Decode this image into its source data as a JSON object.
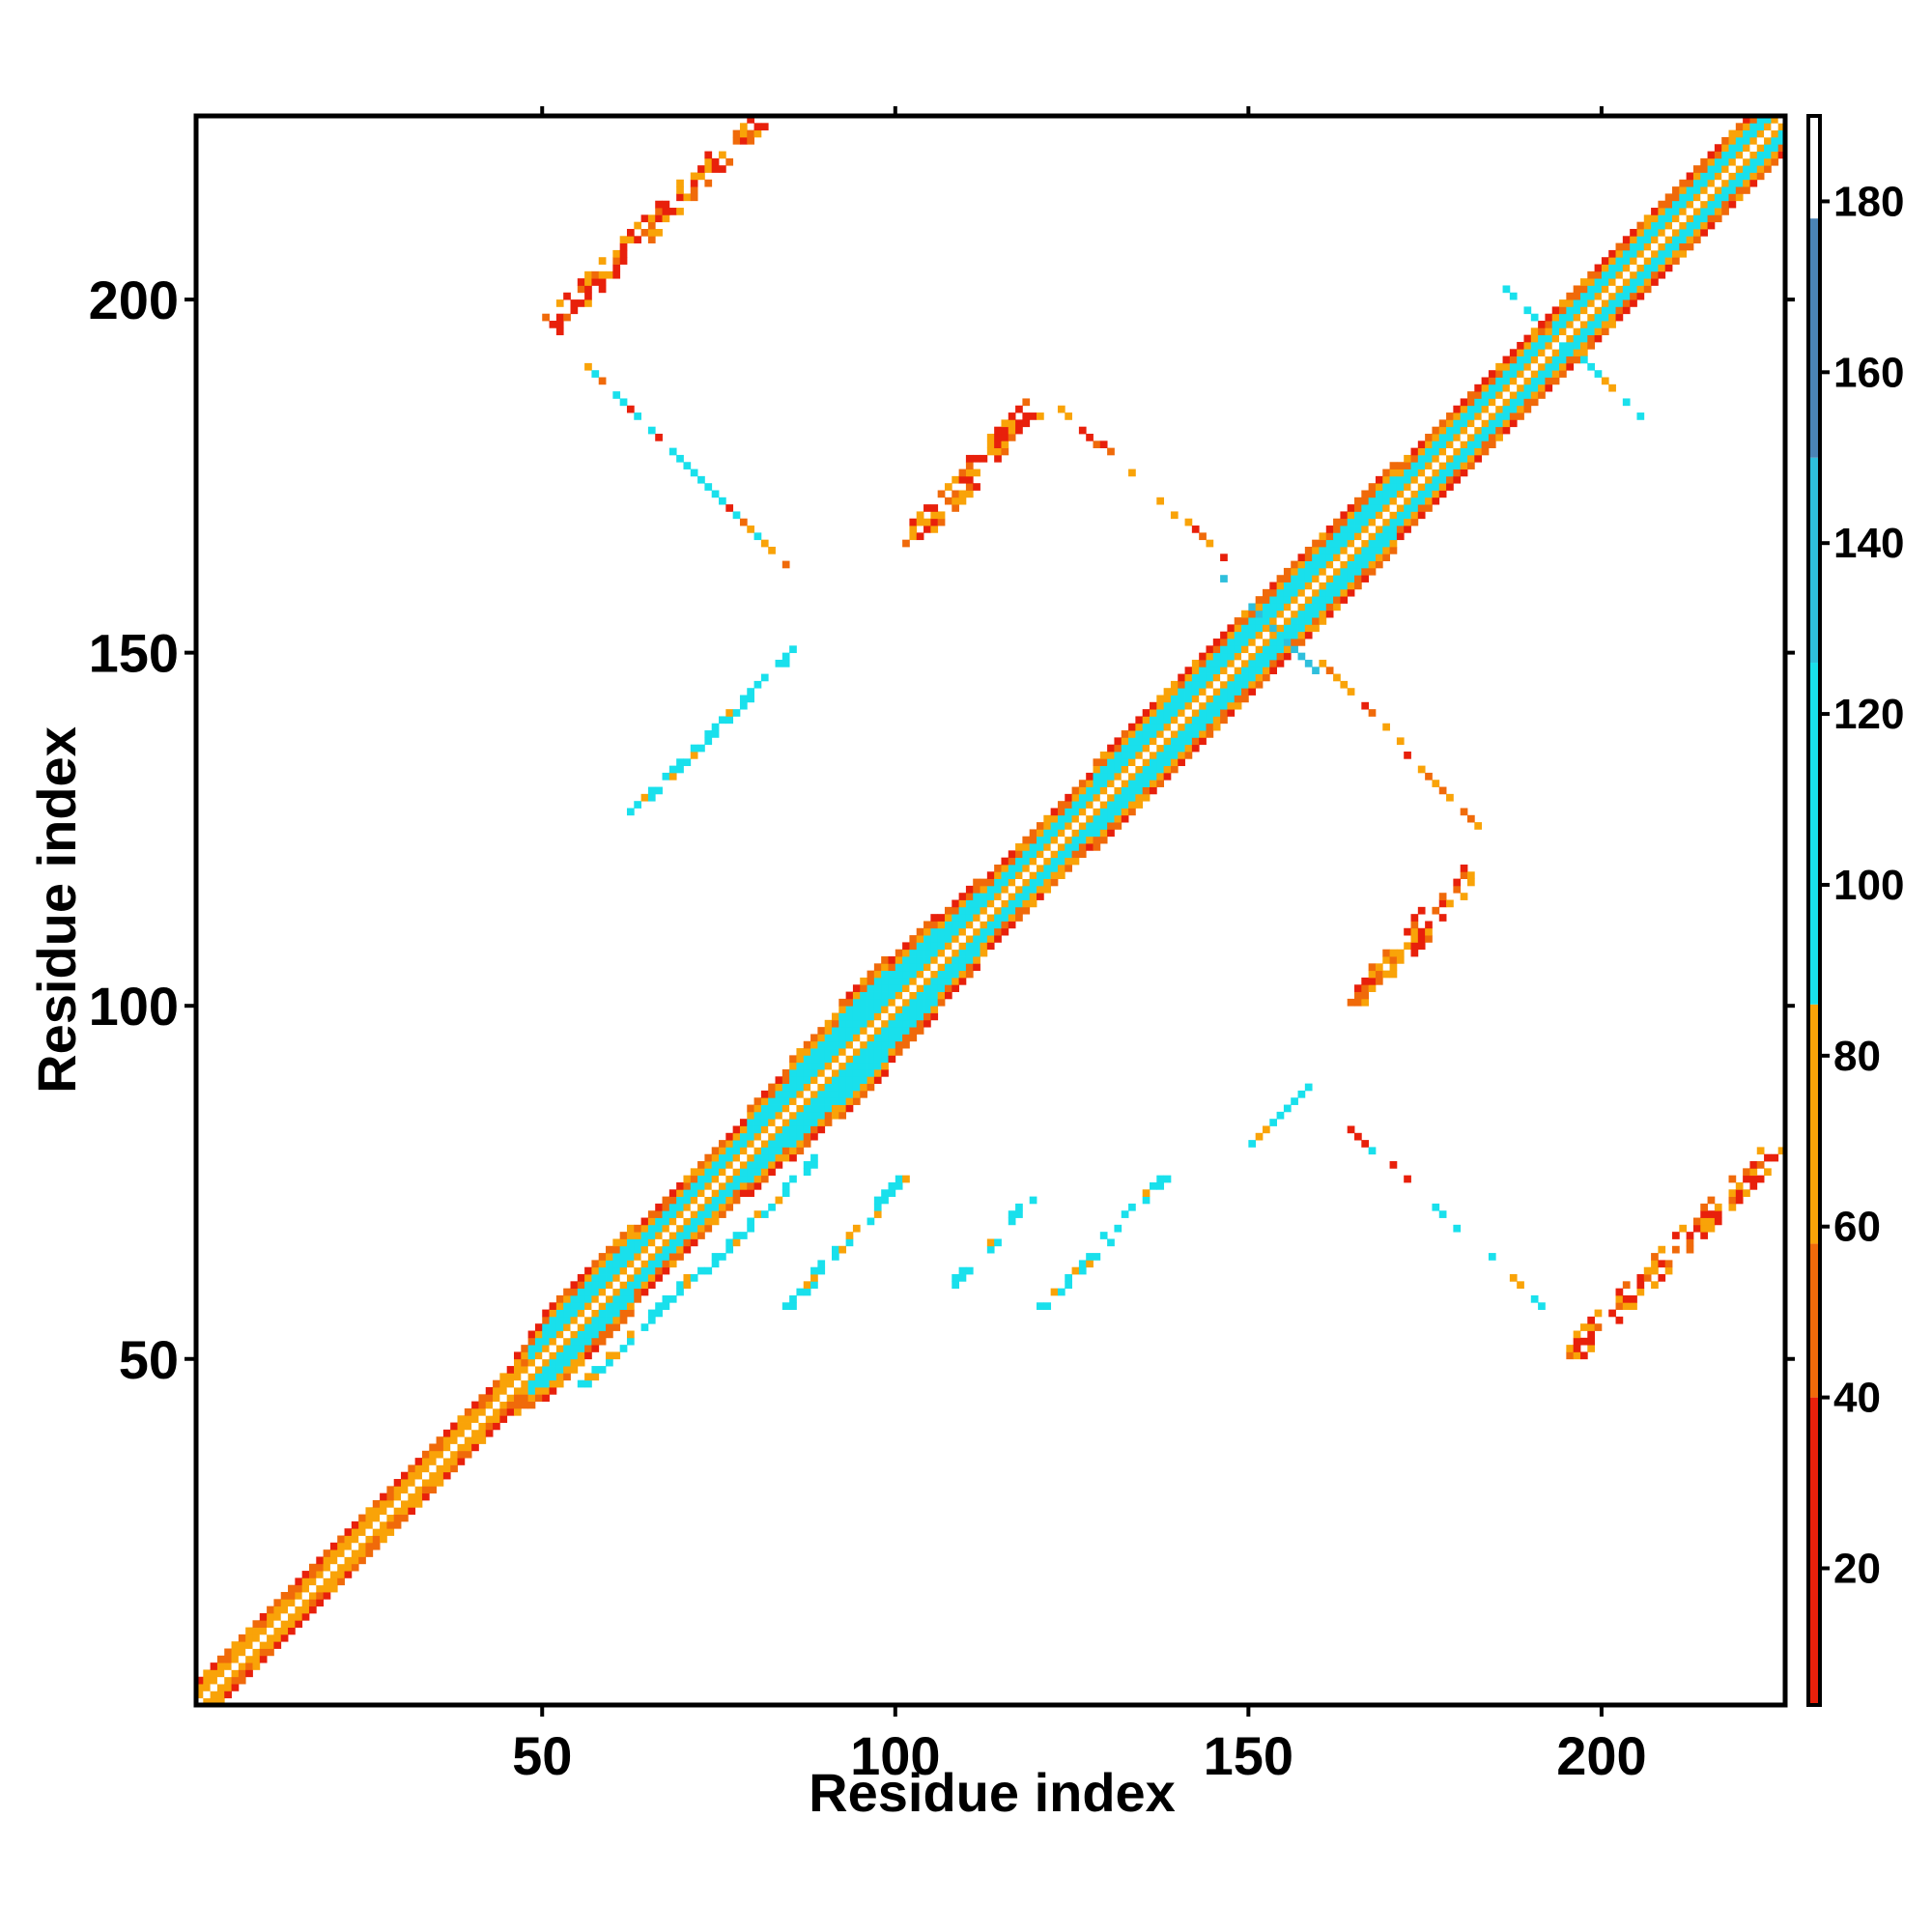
{
  "chart_data": {
    "type": "heatmap",
    "title": "",
    "xlabel": "Residue index",
    "ylabel": "Residue index",
    "xlim": [
      1,
      225
    ],
    "ylim": [
      1,
      225
    ],
    "x_ticks": [
      50,
      100,
      150,
      200
    ],
    "y_ticks": [
      50,
      100,
      150,
      200
    ],
    "x_tick_labels": [
      "50",
      "100",
      "150",
      "200"
    ],
    "y_tick_labels": [
      "50",
      "100",
      "150",
      "200"
    ],
    "colorbar": {
      "range": [
        4,
        190
      ],
      "ticks": [
        20,
        40,
        60,
        80,
        100,
        120,
        140,
        160,
        180
      ],
      "tick_labels": [
        "20",
        "40",
        "60",
        "80",
        "100",
        "120",
        "140",
        "160",
        "180"
      ],
      "bands": [
        {
          "from": 4,
          "to": 40,
          "color": "#e8200b"
        },
        {
          "from": 40,
          "to": 58,
          "color": "#f06a0a"
        },
        {
          "from": 58,
          "to": 86,
          "color": "#f9a308"
        },
        {
          "from": 86,
          "to": 126,
          "color": "#19e0ec"
        },
        {
          "from": 126,
          "to": 150,
          "color": "#2ebfdc"
        },
        {
          "from": 150,
          "to": 178,
          "color": "#4a84b6"
        },
        {
          "from": 178,
          "to": 190,
          "color": "#ffffff"
        }
      ]
    },
    "diagonal_band_halfwidth": [
      {
        "x": 1,
        "w": 3
      },
      {
        "x": 45,
        "w": 3
      },
      {
        "x": 50,
        "w": 6
      },
      {
        "x": 75,
        "w": 5
      },
      {
        "x": 95,
        "w": 8
      },
      {
        "x": 115,
        "w": 5
      },
      {
        "x": 140,
        "w": 6
      },
      {
        "x": 160,
        "w": 6
      },
      {
        "x": 180,
        "w": 5
      },
      {
        "x": 225,
        "w": 5
      }
    ],
    "off_diagonal_contacts": [
      {
        "x1": 55,
        "y1": 46,
        "x2": 88,
        "y2": 78,
        "palette": "cyan",
        "width": 2
      },
      {
        "x1": 84,
        "y1": 57,
        "x2": 100,
        "y2": 75,
        "palette": "cyan",
        "width": 2
      },
      {
        "x1": 107,
        "y1": 60,
        "x2": 118,
        "y2": 72,
        "palette": "cyan",
        "width": 2
      },
      {
        "x1": 120,
        "y1": 57,
        "x2": 137,
        "y2": 75,
        "palette": "cyan",
        "width": 2
      },
      {
        "x1": 150,
        "y1": 80,
        "x2": 158,
        "y2": 88,
        "palette": "cyan",
        "width": 1
      },
      {
        "x1": 161,
        "y1": 85,
        "x2": 186,
        "y2": 62,
        "palette": "mixed",
        "width": 1
      },
      {
        "x1": 186,
        "y1": 62,
        "x2": 192,
        "y2": 56,
        "palette": "cyan",
        "width": 1
      },
      {
        "x1": 195,
        "y1": 50,
        "x2": 224,
        "y2": 79,
        "palette": "warm",
        "width": 3
      },
      {
        "x1": 164,
        "y1": 100,
        "x2": 181,
        "y2": 118,
        "palette": "warm",
        "width": 3
      },
      {
        "x1": 160,
        "y1": 148,
        "x2": 184,
        "y2": 123,
        "palette": "warm",
        "width": 1
      },
      {
        "x1": 62,
        "y1": 127,
        "x2": 85,
        "y2": 150,
        "palette": "cyan",
        "width": 2
      },
      {
        "x1": 101,
        "y1": 165,
        "x2": 118,
        "y2": 183,
        "palette": "warm",
        "width": 3
      },
      {
        "x1": 122,
        "y1": 185,
        "x2": 147,
        "y2": 162,
        "palette": "warm",
        "width": 1
      },
      {
        "x1": 56,
        "y1": 190,
        "x2": 86,
        "y2": 160,
        "palette": "mixed",
        "width": 1
      },
      {
        "x1": 50,
        "y1": 195,
        "x2": 79,
        "y2": 224,
        "palette": "warm",
        "width": 3
      },
      {
        "x1": 146,
        "y1": 160,
        "x2": 160,
        "y2": 146,
        "palette": "steel",
        "width": 1
      },
      {
        "x1": 185,
        "y1": 202,
        "x2": 205,
        "y2": 183,
        "palette": "cyan",
        "width": 1
      }
    ]
  }
}
